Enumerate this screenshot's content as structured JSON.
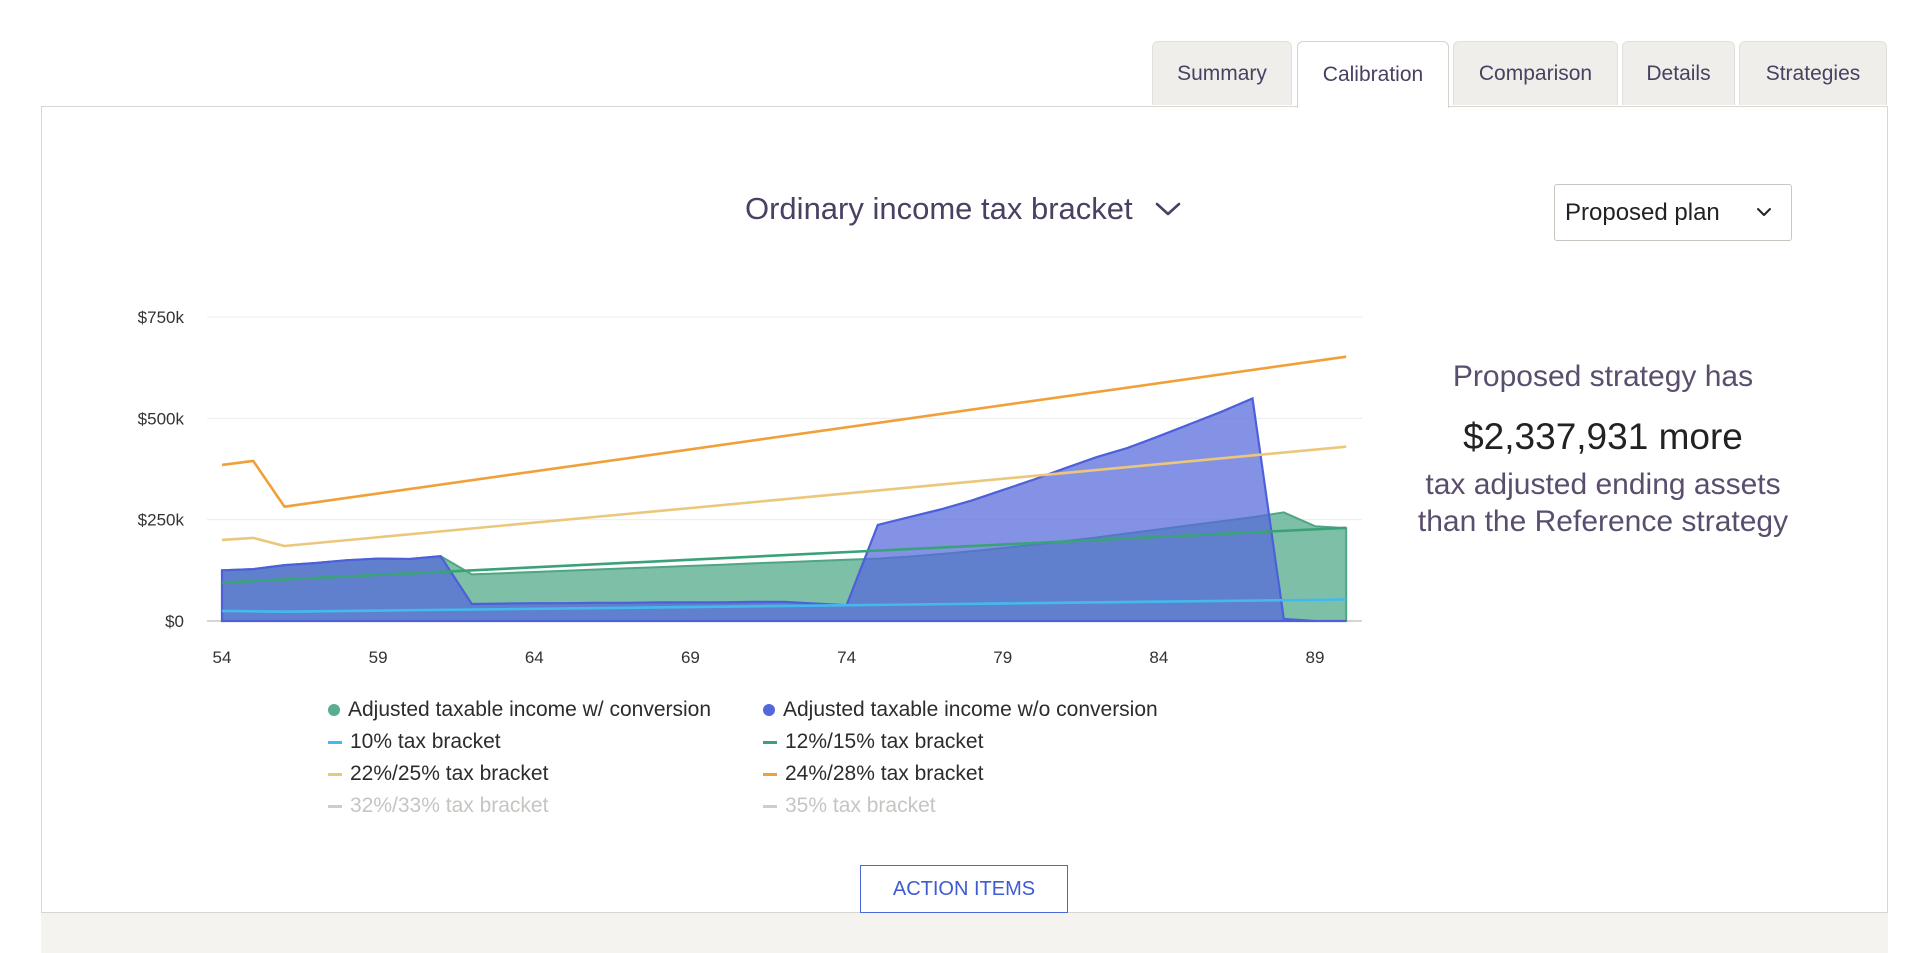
{
  "tabs": [
    {
      "label": "Summary",
      "active": false
    },
    {
      "label": "Calibration",
      "active": true
    },
    {
      "label": "Comparison",
      "active": false
    },
    {
      "label": "Details",
      "active": false
    },
    {
      "label": "Strategies",
      "active": false
    }
  ],
  "chart_title": "Ordinary income tax bracket",
  "plan_select": {
    "value": "Proposed plan"
  },
  "summary": {
    "line1": "Proposed strategy has",
    "amount": "$2,337,931 more",
    "line2": "tax adjusted ending assets",
    "line3": "than the Reference strategy"
  },
  "action_button": "ACTION ITEMS",
  "colors": {
    "with_conversion": "#5aad8e",
    "without_conversion": "#5468dd",
    "b10": "#45b9ee",
    "b12": "#3aa277",
    "b22": "#ebc77c",
    "b24": "#f0a038",
    "muted": "#cfcdca"
  },
  "legend": [
    {
      "label": "Adjusted taxable income w/ conversion",
      "marker": "dot",
      "color": "#5aad8e",
      "muted": false
    },
    {
      "label": "Adjusted taxable income w/o conversion",
      "marker": "dot",
      "color": "#5468dd",
      "muted": false
    },
    {
      "label": "10% tax bracket",
      "marker": "dash",
      "color": "#45b9ee",
      "muted": false
    },
    {
      "label": "12%/15% tax bracket",
      "marker": "dash",
      "color": "#3aa277",
      "muted": false
    },
    {
      "label": "22%/25% tax bracket",
      "marker": "dash",
      "color": "#ebc77c",
      "muted": false
    },
    {
      "label": "24%/28% tax bracket",
      "marker": "dash",
      "color": "#f0a038",
      "muted": false
    },
    {
      "label": "32%/33% tax bracket",
      "marker": "dash",
      "color": "#cfcdca",
      "muted": true
    },
    {
      "label": "35% tax bracket",
      "marker": "dash",
      "color": "#cfcdca",
      "muted": true
    }
  ],
  "chart_data": {
    "type": "area",
    "x_ticks": [
      54,
      59,
      64,
      69,
      74,
      79,
      84,
      89
    ],
    "y_ticks": [
      0,
      250,
      500,
      750
    ],
    "y_tick_labels": [
      "$0",
      "$250k",
      "$500k",
      "$750k"
    ],
    "xlim": [
      54,
      90
    ],
    "ylim": [
      0,
      750
    ],
    "grid": "horizontal",
    "legend_position": "bottom",
    "series": [
      {
        "key": "with_conversion",
        "type": "area",
        "x": [
          54,
          55,
          56,
          57,
          58,
          59,
          60,
          61,
          62,
          63,
          64,
          65,
          66,
          67,
          68,
          69,
          70,
          71,
          72,
          73,
          74,
          75,
          76,
          77,
          78,
          79,
          80,
          81,
          82,
          83,
          84,
          85,
          86,
          87,
          88,
          89,
          90
        ],
        "y": [
          125,
          128,
          138,
          143,
          150,
          154,
          153,
          160,
          115,
          118,
          121,
          124,
          127,
          130,
          133,
          136,
          139,
          142,
          145,
          148,
          151,
          154,
          159,
          165,
          172,
          180,
          188,
          197,
          206,
          216,
          226,
          236,
          246,
          256,
          268,
          234,
          229
        ]
      },
      {
        "key": "without_conversion",
        "type": "area",
        "x": [
          54,
          55,
          56,
          57,
          58,
          59,
          60,
          61,
          62,
          63,
          64,
          65,
          66,
          67,
          68,
          69,
          70,
          71,
          72,
          73,
          74,
          75,
          76,
          77,
          78,
          79,
          80,
          81,
          82,
          83,
          84,
          85,
          86,
          87,
          88,
          89,
          90
        ],
        "y": [
          125,
          128,
          138,
          143,
          150,
          154,
          153,
          160,
          42,
          43,
          44,
          44,
          45,
          45,
          46,
          46,
          46,
          47,
          47,
          43,
          39,
          237,
          256,
          275,
          297,
          323,
          349,
          377,
          404,
          427,
          456,
          486,
          516,
          549,
          5,
          0,
          0
        ]
      },
      {
        "key": "b10",
        "type": "line",
        "x": [
          54,
          56,
          90
        ],
        "y": [
          25,
          23,
          53
        ]
      },
      {
        "key": "b12",
        "type": "line",
        "x": [
          54,
          90
        ],
        "y": [
          95,
          230
        ]
      },
      {
        "key": "b22",
        "type": "line",
        "x": [
          54,
          55,
          56,
          90
        ],
        "y": [
          200,
          205,
          185,
          430
        ]
      },
      {
        "key": "b24",
        "type": "line",
        "x": [
          54,
          55,
          56,
          90
        ],
        "y": [
          385,
          395,
          282,
          652
        ]
      }
    ]
  }
}
